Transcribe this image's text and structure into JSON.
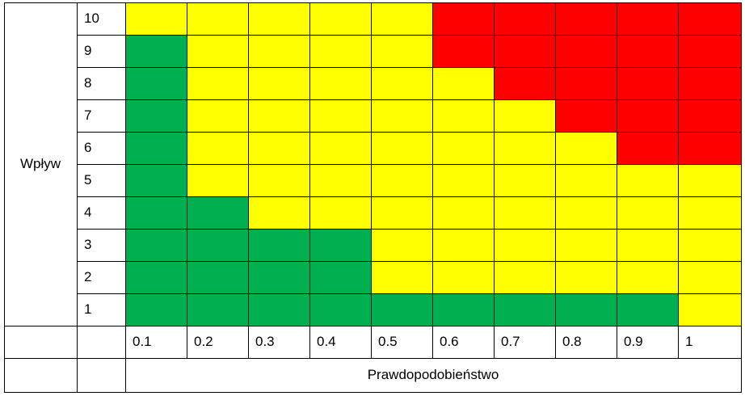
{
  "chart_data": {
    "type": "heatmap",
    "title": "",
    "xlabel": "Prawdopodobieństwo",
    "ylabel": "Wpływ",
    "x": [
      "0.1",
      "0.2",
      "0.3",
      "0.4",
      "0.5",
      "0.6",
      "0.7",
      "0.8",
      "0.9",
      "1"
    ],
    "y": [
      "10",
      "9",
      "8",
      "7",
      "6",
      "5",
      "4",
      "3",
      "2",
      "1"
    ],
    "colors": {
      "green": "#00b050",
      "yellow": "#ffff00",
      "red": "#ff0000"
    },
    "grid": [
      [
        "yellow",
        "yellow",
        "yellow",
        "yellow",
        "yellow",
        "red",
        "red",
        "red",
        "red",
        "red"
      ],
      [
        "green",
        "yellow",
        "yellow",
        "yellow",
        "yellow",
        "red",
        "red",
        "red",
        "red",
        "red"
      ],
      [
        "green",
        "yellow",
        "yellow",
        "yellow",
        "yellow",
        "yellow",
        "red",
        "red",
        "red",
        "red"
      ],
      [
        "green",
        "yellow",
        "yellow",
        "yellow",
        "yellow",
        "yellow",
        "yellow",
        "red",
        "red",
        "red"
      ],
      [
        "green",
        "yellow",
        "yellow",
        "yellow",
        "yellow",
        "yellow",
        "yellow",
        "yellow",
        "red",
        "red"
      ],
      [
        "green",
        "yellow",
        "yellow",
        "yellow",
        "yellow",
        "yellow",
        "yellow",
        "yellow",
        "yellow",
        "yellow"
      ],
      [
        "green",
        "green",
        "yellow",
        "yellow",
        "yellow",
        "yellow",
        "yellow",
        "yellow",
        "yellow",
        "yellow"
      ],
      [
        "green",
        "green",
        "green",
        "green",
        "yellow",
        "yellow",
        "yellow",
        "yellow",
        "yellow",
        "yellow"
      ],
      [
        "green",
        "green",
        "green",
        "green",
        "yellow",
        "yellow",
        "yellow",
        "yellow",
        "yellow",
        "yellow"
      ],
      [
        "green",
        "green",
        "green",
        "green",
        "green",
        "green",
        "green",
        "green",
        "green",
        "yellow"
      ]
    ]
  }
}
